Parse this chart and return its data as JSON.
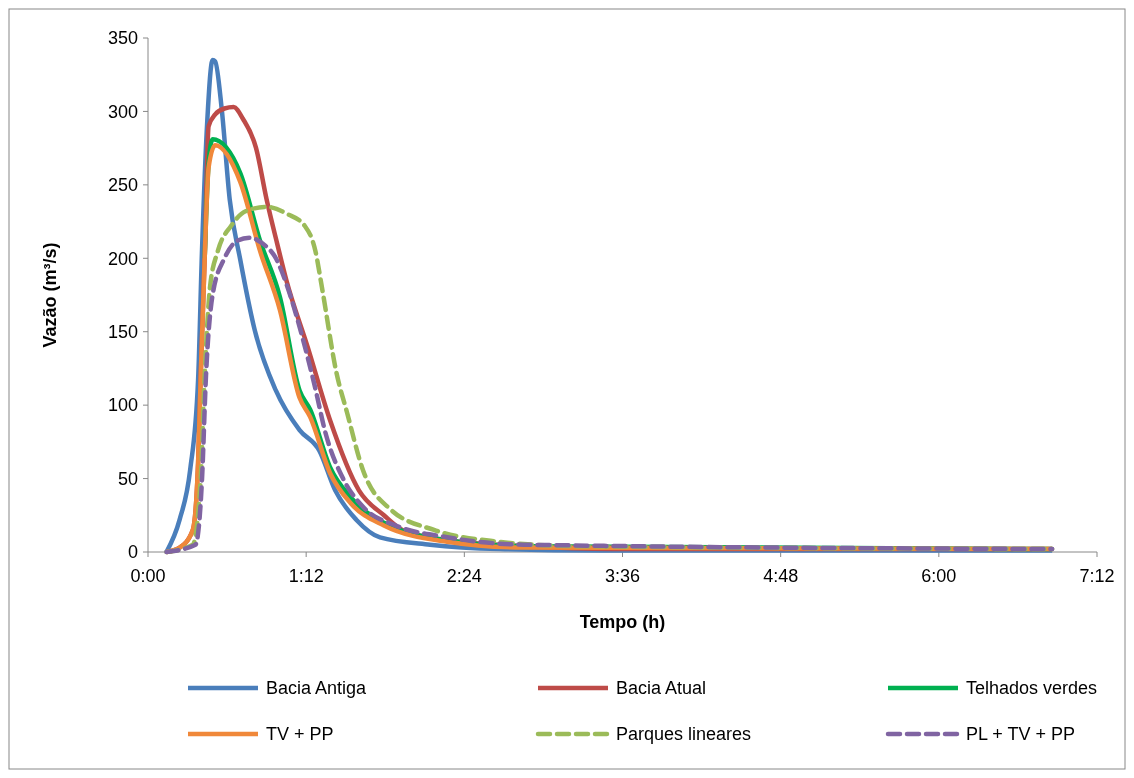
{
  "chart_data": {
    "type": "line",
    "xlabel": "Tempo (h)",
    "ylabel": "Vazão (m³/s)",
    "xlim": [
      0,
      7.2
    ],
    "ylim": [
      0,
      350
    ],
    "xticks": [
      {
        "value": 0,
        "label": "0:00"
      },
      {
        "value": 1.2,
        "label": "1:12"
      },
      {
        "value": 2.4,
        "label": "2:24"
      },
      {
        "value": 3.6,
        "label": "3:36"
      },
      {
        "value": 4.8,
        "label": "4:48"
      },
      {
        "value": 6,
        "label": "6:00"
      },
      {
        "value": 7.2,
        "label": "7:12"
      }
    ],
    "yticks": [
      0,
      50,
      100,
      150,
      200,
      250,
      300,
      350
    ],
    "grid": false,
    "legend": "bottom",
    "series": [
      {
        "name": "Bacia Antiga",
        "color": "#4a7ebb",
        "line_style": "solid",
        "x": [
          0.14,
          0.24,
          0.32,
          0.38,
          0.41,
          0.45,
          0.49,
          0.51,
          0.56,
          0.62,
          0.7,
          0.81,
          0.97,
          1.15,
          1.3,
          1.42,
          1.58,
          1.76,
          2.14,
          2.67,
          3.43,
          6.86
        ],
        "values": [
          0,
          22,
          56,
          117,
          206,
          294,
          335,
          334,
          301,
          240,
          199,
          151,
          110,
          83,
          69,
          42,
          22,
          10,
          5,
          2,
          1,
          1
        ]
      },
      {
        "name": "Bacia Atual",
        "color": "#be4b48",
        "line_style": "solid",
        "x": [
          0.14,
          0.24,
          0.34,
          0.38,
          0.4,
          0.43,
          0.46,
          0.51,
          0.58,
          0.65,
          0.72,
          0.82,
          0.9,
          0.98,
          1.05,
          1.21,
          1.38,
          1.6,
          1.79,
          1.93,
          2.27,
          2.85,
          3.53,
          6.86
        ],
        "values": [
          0,
          3,
          15,
          60,
          120,
          200,
          290,
          298,
          302,
          303,
          295,
          275,
          240,
          210,
          185,
          140,
          90,
          42,
          25,
          15,
          8,
          4,
          2,
          2
        ]
      },
      {
        "name": "Telhados verdes",
        "color": "#00b050",
        "line_style": "solid",
        "x": [
          0.43,
          0.46,
          0.49,
          0.7,
          0.85,
          1.0,
          1.15,
          1.23,
          1.38,
          1.54,
          1.79,
          2.27,
          2.85,
          6.86
        ],
        "values": [
          200,
          265,
          281,
          258,
          212,
          174,
          110,
          97,
          58,
          37,
          20,
          8,
          4,
          2
        ]
      },
      {
        "name": "TV + PP",
        "color": "#f0883a",
        "line_style": "solid",
        "x": [
          0.14,
          0.24,
          0.34,
          0.38,
          0.4,
          0.43,
          0.46,
          0.51,
          0.7,
          0.85,
          1.0,
          1.15,
          1.23,
          1.38,
          1.54,
          1.79,
          2.27,
          2.85,
          6.86
        ],
        "values": [
          0,
          3,
          15,
          60,
          120,
          200,
          262,
          277,
          252,
          205,
          165,
          105,
          92,
          54,
          33,
          18,
          7,
          3,
          2
        ]
      },
      {
        "name": "Parques lineares",
        "color": "#9bbb59",
        "line_style": "dashed",
        "x": [
          0.14,
          0.34,
          0.4,
          0.43,
          0.47,
          0.53,
          0.63,
          0.74,
          0.9,
          1.06,
          1.19,
          1.27,
          1.32,
          1.43,
          1.51,
          1.63,
          1.84,
          2.17,
          2.66,
          3.24,
          6.86
        ],
        "values": [
          0,
          5,
          50,
          120,
          180,
          205,
          222,
          232,
          235,
          230,
          222,
          205,
          180,
          122,
          95,
          56,
          29,
          15,
          7,
          4,
          2
        ]
      },
      {
        "name": "PL + TV + PP",
        "color": "#8064a2",
        "line_style": "dashed",
        "x": [
          0.14,
          0.36,
          0.41,
          0.44,
          0.49,
          0.58,
          0.68,
          0.77,
          0.87,
          0.97,
          1.06,
          1.16,
          1.26,
          1.35,
          1.48,
          1.64,
          1.88,
          2.27,
          2.85,
          6.86
        ],
        "values": [
          0,
          5,
          50,
          120,
          175,
          200,
          212,
          214,
          210,
          200,
          180,
          150,
          115,
          80,
          50,
          30,
          18,
          10,
          5,
          2
        ]
      }
    ]
  }
}
